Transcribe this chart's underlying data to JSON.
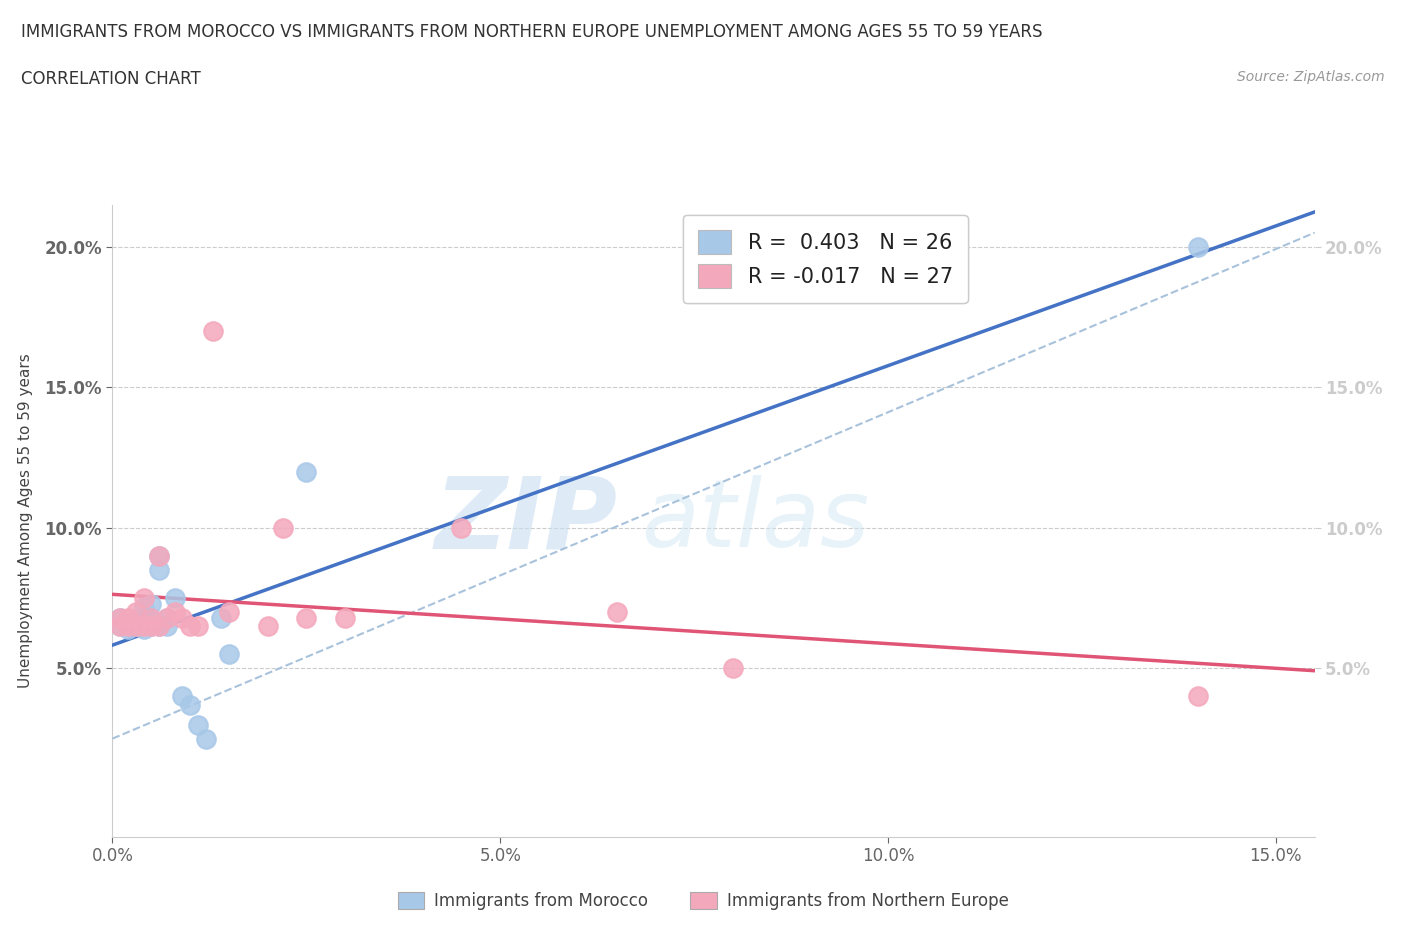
{
  "title_line1": "IMMIGRANTS FROM MOROCCO VS IMMIGRANTS FROM NORTHERN EUROPE UNEMPLOYMENT AMONG AGES 55 TO 59 YEARS",
  "title_line2": "CORRELATION CHART",
  "source_text": "Source: ZipAtlas.com",
  "ylabel": "Unemployment Among Ages 55 to 59 years",
  "xlim": [
    0.0,
    0.155
  ],
  "ylim": [
    -0.01,
    0.215
  ],
  "xticks": [
    0.0,
    0.05,
    0.1,
    0.15
  ],
  "xtick_labels": [
    "0.0%",
    "5.0%",
    "10.0%",
    "15.0%"
  ],
  "yticks": [
    0.05,
    0.1,
    0.15,
    0.2
  ],
  "ytick_labels": [
    "5.0%",
    "10.0%",
    "15.0%",
    "20.0%"
  ],
  "morocco_R": "0.403",
  "morocco_N": 26,
  "northern_R": "-0.017",
  "northern_N": 27,
  "morocco_color": "#a8c8e8",
  "northern_color": "#f4a8bc",
  "morocco_line_color": "#4472c4",
  "northern_line_color": "#e05575",
  "diag_line_color": "#a0bcd8",
  "watermark_zip": "ZIP",
  "watermark_atlas": "atlas",
  "legend_label_morocco": "Immigrants from Morocco",
  "legend_label_northern": "Immigrants from Northern Europe",
  "morocco_x": [
    0.001,
    0.001,
    0.002,
    0.002,
    0.003,
    0.003,
    0.004,
    0.004,
    0.004,
    0.005,
    0.005,
    0.005,
    0.006,
    0.006,
    0.006,
    0.007,
    0.007,
    0.008,
    0.009,
    0.01,
    0.011,
    0.012,
    0.014,
    0.015,
    0.025,
    0.14
  ],
  "morocco_y": [
    0.065,
    0.068,
    0.064,
    0.066,
    0.065,
    0.067,
    0.064,
    0.068,
    0.072,
    0.065,
    0.068,
    0.073,
    0.065,
    0.085,
    0.09,
    0.065,
    0.068,
    0.075,
    0.04,
    0.037,
    0.03,
    0.025,
    0.068,
    0.055,
    0.12,
    0.2
  ],
  "northern_x": [
    0.001,
    0.001,
    0.002,
    0.002,
    0.003,
    0.003,
    0.004,
    0.004,
    0.005,
    0.005,
    0.006,
    0.006,
    0.007,
    0.008,
    0.009,
    0.01,
    0.011,
    0.013,
    0.015,
    0.02,
    0.022,
    0.025,
    0.03,
    0.045,
    0.065,
    0.08,
    0.14
  ],
  "northern_y": [
    0.065,
    0.068,
    0.065,
    0.068,
    0.065,
    0.07,
    0.065,
    0.075,
    0.065,
    0.068,
    0.065,
    0.09,
    0.068,
    0.07,
    0.068,
    0.065,
    0.065,
    0.17,
    0.07,
    0.065,
    0.1,
    0.068,
    0.068,
    0.1,
    0.07,
    0.05,
    0.04
  ],
  "bg_color": "#ffffff",
  "grid_color": "#cccccc"
}
